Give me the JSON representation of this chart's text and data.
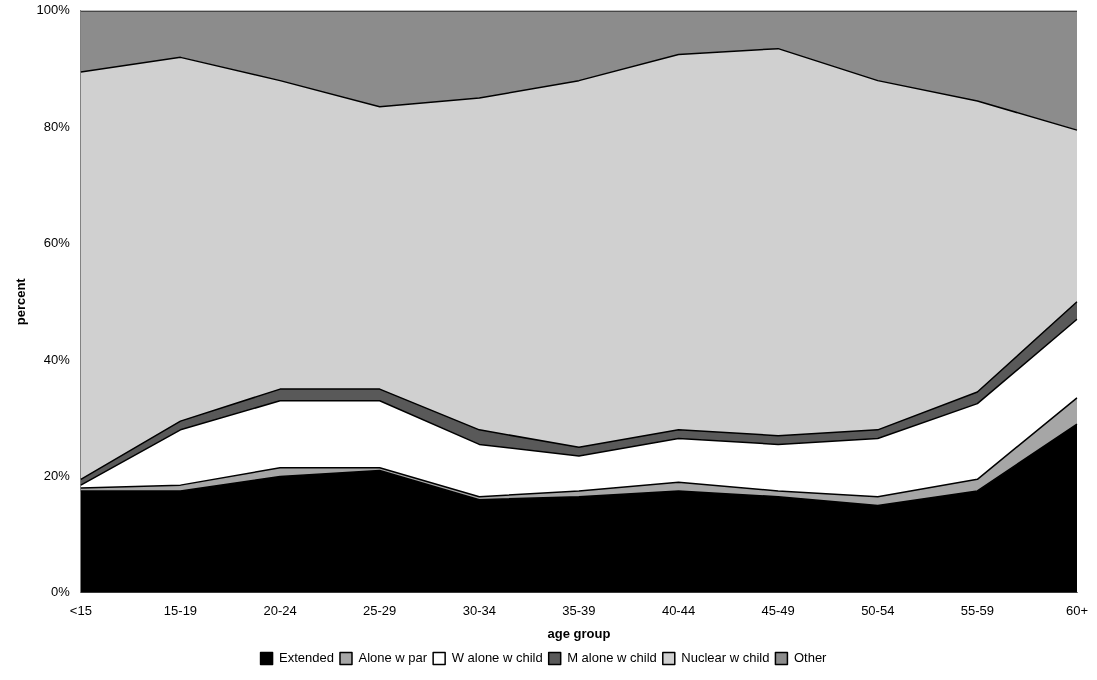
{
  "chart_data": {
    "type": "area",
    "stacked": true,
    "xlabel": "age group",
    "ylabel": "percent",
    "categories": [
      "<15",
      "15-19",
      "20-24",
      "25-29",
      "30-34",
      "35-39",
      "40-44",
      "45-49",
      "50-54",
      "55-59",
      "60+"
    ],
    "ylim": [
      0,
      100
    ],
    "yticks": [
      {
        "value": 0,
        "label": "0%"
      },
      {
        "value": 20,
        "label": "20%"
      },
      {
        "value": 40,
        "label": "40%"
      },
      {
        "value": 60,
        "label": "60%"
      },
      {
        "value": 80,
        "label": "80%"
      },
      {
        "value": 100,
        "label": "100%"
      }
    ],
    "grid": false,
    "legend": "bottom",
    "series": [
      {
        "name": "Extended",
        "color": "#000000",
        "values": [
          17.5,
          17.5,
          20,
          21,
          16,
          16.5,
          17.5,
          16.5,
          15,
          17.5,
          29
        ]
      },
      {
        "name": "Alone w par",
        "color": "#a6a6a6",
        "values": [
          0.5,
          1,
          1.5,
          0.5,
          0.5,
          1,
          1.5,
          1,
          1.5,
          2,
          4.5
        ]
      },
      {
        "name": "W alone w child",
        "color": "#ffffff",
        "values": [
          0.5,
          9.5,
          11.5,
          11.5,
          9,
          6,
          7.5,
          8,
          10,
          13,
          13.5
        ]
      },
      {
        "name": "M alone w child",
        "color": "#595959",
        "values": [
          1,
          1.5,
          2,
          2,
          2.5,
          1.5,
          1.5,
          1.5,
          1.5,
          2,
          3
        ]
      },
      {
        "name": "Nuclear w child",
        "color": "#d0d0d0",
        "values": [
          70,
          62.5,
          53,
          48.5,
          57,
          63,
          64.5,
          66.5,
          60,
          50,
          29.5
        ]
      },
      {
        "name": "Other",
        "color": "#8c8c8c",
        "values": [
          10.5,
          8,
          12,
          16.5,
          15,
          12,
          7.5,
          6.5,
          12,
          15.5,
          20.5
        ]
      }
    ]
  }
}
